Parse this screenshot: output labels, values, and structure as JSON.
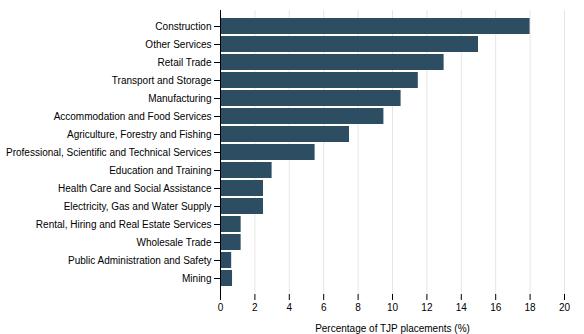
{
  "chart_data": {
    "type": "bar",
    "orientation": "horizontal",
    "categories": [
      "Mining",
      "Public Administration and Safety",
      "Wholesale Trade",
      "Rental, Hiring and Real Estate Services",
      "Electricity, Gas and Water Supply",
      "Health Care and Social Assistance",
      "Education and Training",
      "Professional, Scientific and Technical Services",
      "Agriculture, Forestry and Fishing",
      "Accommodation and Food Services",
      "Manufacturing",
      "Transport and Storage",
      "Retail Trade",
      "Other Services",
      "Construction"
    ],
    "values": [
      0.7,
      0.65,
      1.2,
      1.2,
      2.5,
      2.5,
      3.0,
      5.5,
      7.5,
      9.5,
      10.5,
      11.5,
      13.0,
      15.0,
      18.0
    ],
    "color": "#2d4d63",
    "xlabel": "Percentage of TJP placements (%)",
    "xlim": [
      0,
      20
    ],
    "xticks": [
      0,
      2,
      4,
      6,
      8,
      10,
      12,
      14,
      16,
      18,
      20
    ],
    "grid": true
  }
}
